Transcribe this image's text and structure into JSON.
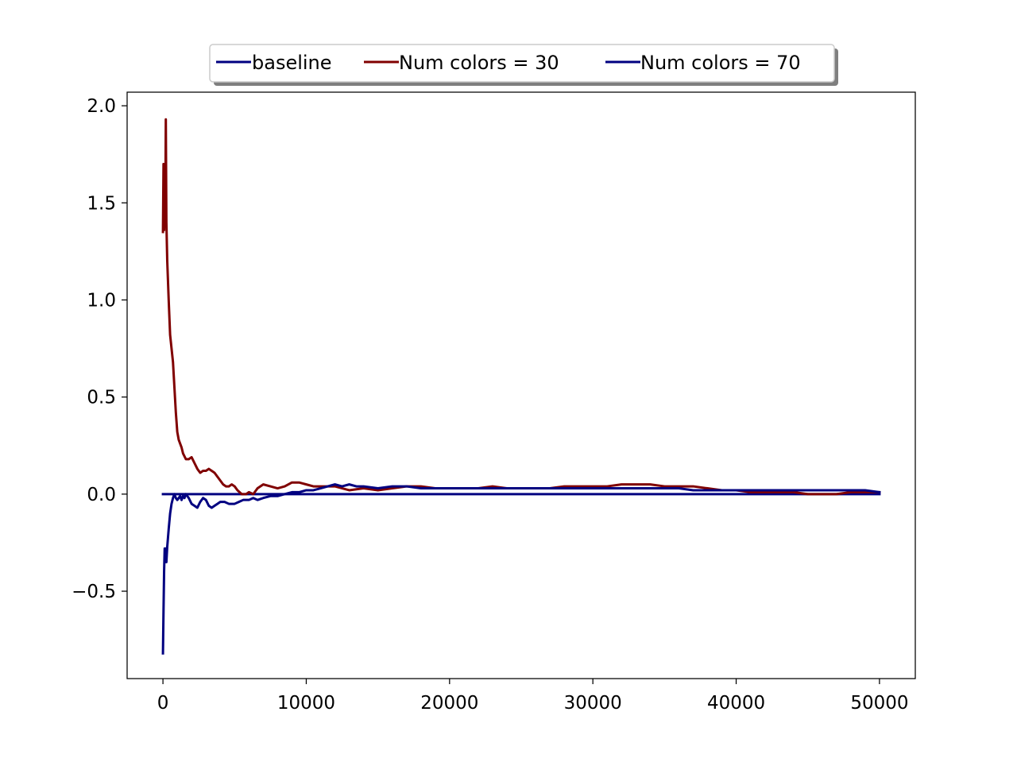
{
  "chart_data": {
    "type": "line",
    "title": "",
    "xlabel": "",
    "ylabel": "",
    "xlim": [
      -2500,
      52500
    ],
    "ylim": [
      -0.95,
      2.07
    ],
    "x_ticks": [
      0,
      10000,
      20000,
      30000,
      40000,
      50000
    ],
    "x_tick_labels": [
      "0",
      "10000",
      "20000",
      "30000",
      "40000",
      "50000"
    ],
    "y_ticks": [
      -0.5,
      0.0,
      0.5,
      1.0,
      1.5,
      2.0
    ],
    "y_tick_labels": [
      "−0.5",
      "0.0",
      "0.5",
      "1.0",
      "1.5",
      "2.0"
    ],
    "grid": false,
    "legend_position": "top-center",
    "series": [
      {
        "name": "baseline",
        "color": "#000080",
        "points": [
          [
            0,
            0.0
          ],
          [
            50000,
            0.0
          ]
        ]
      },
      {
        "name": "Num colors = 30",
        "color": "#800000",
        "points": [
          [
            0,
            1.35
          ],
          [
            40,
            1.7
          ],
          [
            80,
            1.36
          ],
          [
            120,
            1.62
          ],
          [
            160,
            1.4
          ],
          [
            200,
            1.93
          ],
          [
            240,
            1.4
          ],
          [
            300,
            1.2
          ],
          [
            400,
            1.0
          ],
          [
            500,
            0.82
          ],
          [
            600,
            0.75
          ],
          [
            700,
            0.68
          ],
          [
            800,
            0.55
          ],
          [
            900,
            0.42
          ],
          [
            1000,
            0.32
          ],
          [
            1100,
            0.28
          ],
          [
            1200,
            0.26
          ],
          [
            1300,
            0.24
          ],
          [
            1400,
            0.21
          ],
          [
            1600,
            0.18
          ],
          [
            1800,
            0.18
          ],
          [
            2000,
            0.19
          ],
          [
            2200,
            0.16
          ],
          [
            2400,
            0.13
          ],
          [
            2600,
            0.11
          ],
          [
            2800,
            0.12
          ],
          [
            3000,
            0.12
          ],
          [
            3200,
            0.13
          ],
          [
            3400,
            0.12
          ],
          [
            3600,
            0.11
          ],
          [
            3800,
            0.09
          ],
          [
            4000,
            0.07
          ],
          [
            4200,
            0.05
          ],
          [
            4400,
            0.04
          ],
          [
            4600,
            0.04
          ],
          [
            4800,
            0.05
          ],
          [
            5000,
            0.04
          ],
          [
            5200,
            0.02
          ],
          [
            5500,
            0.0
          ],
          [
            5800,
            0.0
          ],
          [
            6000,
            0.01
          ],
          [
            6300,
            0.0
          ],
          [
            6600,
            0.03
          ],
          [
            7000,
            0.05
          ],
          [
            7500,
            0.04
          ],
          [
            8000,
            0.03
          ],
          [
            8500,
            0.04
          ],
          [
            9000,
            0.06
          ],
          [
            9500,
            0.06
          ],
          [
            10000,
            0.05
          ],
          [
            10500,
            0.04
          ],
          [
            11000,
            0.04
          ],
          [
            12000,
            0.04
          ],
          [
            13000,
            0.02
          ],
          [
            14000,
            0.03
          ],
          [
            15000,
            0.02
          ],
          [
            16000,
            0.03
          ],
          [
            17000,
            0.04
          ],
          [
            18000,
            0.04
          ],
          [
            19000,
            0.03
          ],
          [
            20000,
            0.03
          ],
          [
            21000,
            0.03
          ],
          [
            22000,
            0.03
          ],
          [
            23000,
            0.04
          ],
          [
            24000,
            0.03
          ],
          [
            25000,
            0.03
          ],
          [
            26000,
            0.03
          ],
          [
            27000,
            0.03
          ],
          [
            28000,
            0.04
          ],
          [
            29000,
            0.04
          ],
          [
            30000,
            0.04
          ],
          [
            31000,
            0.04
          ],
          [
            32000,
            0.05
          ],
          [
            33000,
            0.05
          ],
          [
            34000,
            0.05
          ],
          [
            35000,
            0.04
          ],
          [
            36000,
            0.04
          ],
          [
            37000,
            0.04
          ],
          [
            38000,
            0.03
          ],
          [
            39000,
            0.02
          ],
          [
            40000,
            0.02
          ],
          [
            41000,
            0.01
          ],
          [
            42000,
            0.01
          ],
          [
            43000,
            0.01
          ],
          [
            44000,
            0.01
          ],
          [
            45000,
            0.0
          ],
          [
            46000,
            0.0
          ],
          [
            47000,
            0.0
          ],
          [
            48000,
            0.01
          ],
          [
            49000,
            0.01
          ],
          [
            50000,
            0.01
          ]
        ]
      },
      {
        "name": "Num colors = 70",
        "color": "#000080",
        "points": [
          [
            0,
            -0.82
          ],
          [
            40,
            -0.6
          ],
          [
            80,
            -0.4
          ],
          [
            120,
            -0.28
          ],
          [
            160,
            -0.31
          ],
          [
            200,
            -0.28
          ],
          [
            240,
            -0.35
          ],
          [
            300,
            -0.27
          ],
          [
            400,
            -0.18
          ],
          [
            500,
            -0.1
          ],
          [
            600,
            -0.05
          ],
          [
            700,
            -0.02
          ],
          [
            800,
            0.0
          ],
          [
            900,
            -0.02
          ],
          [
            1000,
            -0.03
          ],
          [
            1100,
            -0.02
          ],
          [
            1200,
            -0.01
          ],
          [
            1300,
            -0.03
          ],
          [
            1400,
            -0.01
          ],
          [
            1500,
            -0.02
          ],
          [
            1600,
            0.0
          ],
          [
            1800,
            -0.02
          ],
          [
            2000,
            -0.05
          ],
          [
            2200,
            -0.06
          ],
          [
            2400,
            -0.07
          ],
          [
            2600,
            -0.04
          ],
          [
            2800,
            -0.02
          ],
          [
            3000,
            -0.03
          ],
          [
            3200,
            -0.06
          ],
          [
            3400,
            -0.07
          ],
          [
            3600,
            -0.06
          ],
          [
            3800,
            -0.05
          ],
          [
            4000,
            -0.04
          ],
          [
            4300,
            -0.04
          ],
          [
            4600,
            -0.05
          ],
          [
            5000,
            -0.05
          ],
          [
            5300,
            -0.04
          ],
          [
            5600,
            -0.03
          ],
          [
            6000,
            -0.03
          ],
          [
            6300,
            -0.02
          ],
          [
            6600,
            -0.03
          ],
          [
            7000,
            -0.02
          ],
          [
            7500,
            -0.01
          ],
          [
            8000,
            -0.01
          ],
          [
            8500,
            0.0
          ],
          [
            9000,
            0.01
          ],
          [
            9500,
            0.01
          ],
          [
            10000,
            0.02
          ],
          [
            10500,
            0.02
          ],
          [
            11000,
            0.03
          ],
          [
            11500,
            0.04
          ],
          [
            12000,
            0.05
          ],
          [
            12500,
            0.04
          ],
          [
            13000,
            0.05
          ],
          [
            13500,
            0.04
          ],
          [
            14000,
            0.04
          ],
          [
            15000,
            0.03
          ],
          [
            16000,
            0.04
          ],
          [
            17000,
            0.04
          ],
          [
            18000,
            0.03
          ],
          [
            19000,
            0.03
          ],
          [
            20000,
            0.03
          ],
          [
            21000,
            0.03
          ],
          [
            22000,
            0.03
          ],
          [
            23000,
            0.03
          ],
          [
            24000,
            0.03
          ],
          [
            25000,
            0.03
          ],
          [
            26000,
            0.03
          ],
          [
            27000,
            0.03
          ],
          [
            28000,
            0.03
          ],
          [
            29000,
            0.03
          ],
          [
            30000,
            0.03
          ],
          [
            31000,
            0.03
          ],
          [
            32000,
            0.03
          ],
          [
            33000,
            0.03
          ],
          [
            34000,
            0.03
          ],
          [
            35000,
            0.03
          ],
          [
            36000,
            0.03
          ],
          [
            37000,
            0.02
          ],
          [
            38000,
            0.02
          ],
          [
            39000,
            0.02
          ],
          [
            40000,
            0.02
          ],
          [
            41000,
            0.02
          ],
          [
            42000,
            0.02
          ],
          [
            43000,
            0.02
          ],
          [
            44000,
            0.02
          ],
          [
            45000,
            0.02
          ],
          [
            46000,
            0.02
          ],
          [
            47000,
            0.02
          ],
          [
            48000,
            0.02
          ],
          [
            49000,
            0.02
          ],
          [
            50000,
            0.01
          ]
        ]
      }
    ]
  }
}
